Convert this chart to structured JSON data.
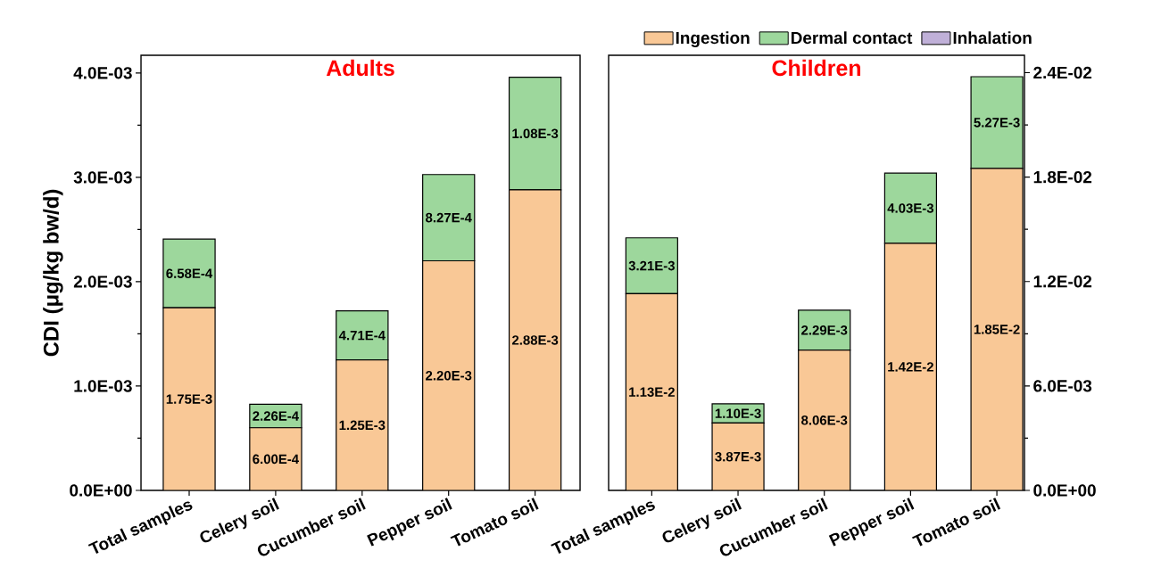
{
  "chart_data": [
    {
      "type": "bar",
      "title": "Adults",
      "ylabel": "CDI (μg/kg bw/d)",
      "stacked": true,
      "legend": false,
      "categories": [
        "Total samples",
        "Celery soil",
        "Cucumber soil",
        "Pepper soil",
        "Tomato soil"
      ],
      "ylim": [
        0,
        0.00417
      ],
      "yticks": [
        {
          "value": 0,
          "label": "0.0E+00"
        },
        {
          "value": 0.001,
          "label": "1.0E-03"
        },
        {
          "value": 0.002,
          "label": "2.0E-03"
        },
        {
          "value": 0.003,
          "label": "3.0E-03"
        },
        {
          "value": 0.004,
          "label": "4.0E-03"
        }
      ],
      "series": [
        {
          "color": "#f9c896",
          "values": [
            0.00175,
            0.0006,
            0.00125,
            0.0022,
            0.00288
          ],
          "value_labels": [
            "1.75E-3",
            "6.00E-4",
            "1.25E-3",
            "2.20E-3",
            "2.88E-3"
          ]
        },
        {
          "color": "#9dd79c",
          "values": [
            0.000658,
            0.000226,
            0.000471,
            0.000827,
            0.00108
          ],
          "value_labels": [
            "6.58E-4",
            "2.26E-4",
            "4.71E-4",
            "8.27E-4",
            "1.08E-3"
          ]
        },
        {
          "color": "#c0b0d8",
          "values": [
            0,
            0,
            0,
            0,
            0
          ]
        }
      ]
    },
    {
      "type": "bar",
      "title": "Children",
      "stacked": true,
      "legend": "top right",
      "categories": [
        "Total samples",
        "Celery soil",
        "Cucumber soil",
        "Pepper soil",
        "Tomato soil"
      ],
      "ylim": [
        0,
        0.025
      ],
      "yticks": [
        {
          "value": 0,
          "label": "0.0E+00"
        },
        {
          "value": 0.006,
          "label": "6.0E-03"
        },
        {
          "value": 0.012,
          "label": "1.2E-02"
        },
        {
          "value": 0.018,
          "label": "1.8E-02"
        },
        {
          "value": 0.024,
          "label": "2.4E-02"
        }
      ],
      "series": [
        {
          "name": "Ingestion",
          "color": "#f9c896",
          "values": [
            0.0113,
            0.00387,
            0.00806,
            0.0142,
            0.0185
          ],
          "value_labels": [
            "1.13E-2",
            "3.87E-3",
            "8.06E-3",
            "1.42E-2",
            "1.85E-2"
          ]
        },
        {
          "name": "Dermal contact",
          "color": "#9dd79c",
          "values": [
            0.00321,
            0.0011,
            0.00229,
            0.00403,
            0.00527
          ],
          "value_labels": [
            "3.21E-3",
            "1.10E-3",
            "2.29E-3",
            "4.03E-3",
            "5.27E-3"
          ]
        },
        {
          "name": "Inhalation",
          "color": "#c0b0d8",
          "values": [
            0,
            0,
            0,
            0,
            0
          ]
        }
      ]
    }
  ]
}
